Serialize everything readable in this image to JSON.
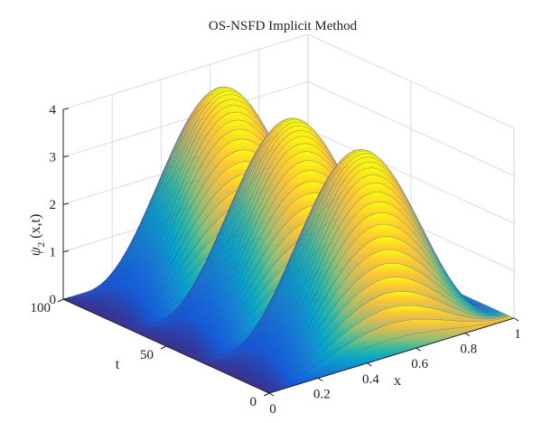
{
  "chart_data": {
    "type": "surface",
    "title": "OS-NSFD Implicit Method",
    "xlabel": "x",
    "ylabel": "t",
    "zlabel": "ψ2 (x,t)",
    "zlabel_main": "ψ",
    "zlabel_sub": "2",
    "zlabel_rest": " (x,t)",
    "xlim": [
      0,
      1
    ],
    "ylim": [
      0,
      100
    ],
    "zlim": [
      0,
      4
    ],
    "x_ticks": [
      "0",
      "0.2",
      "0.4",
      "0.6",
      "0.8",
      "1"
    ],
    "y_ticks": [
      "0",
      "50",
      "100"
    ],
    "z_ticks": [
      "0",
      "1",
      "2",
      "3",
      "4"
    ],
    "surface": {
      "formula": "psi2 = 4 * sin(pi*x)^2 * |sin(3*pi*t/100)|",
      "x_range": [
        0,
        1
      ],
      "t_range": [
        0,
        100
      ],
      "peak": 4,
      "ridges_along_t": 3,
      "colormap": "parula"
    },
    "grid": true,
    "colors": {
      "surface_low": "#3e26a8",
      "surface_mid": "#13b5c2",
      "surface_high": "#f9fb15",
      "mesh_line": "#3a3aa0",
      "axis": "#222222",
      "grid": "#dcdcdc"
    }
  }
}
